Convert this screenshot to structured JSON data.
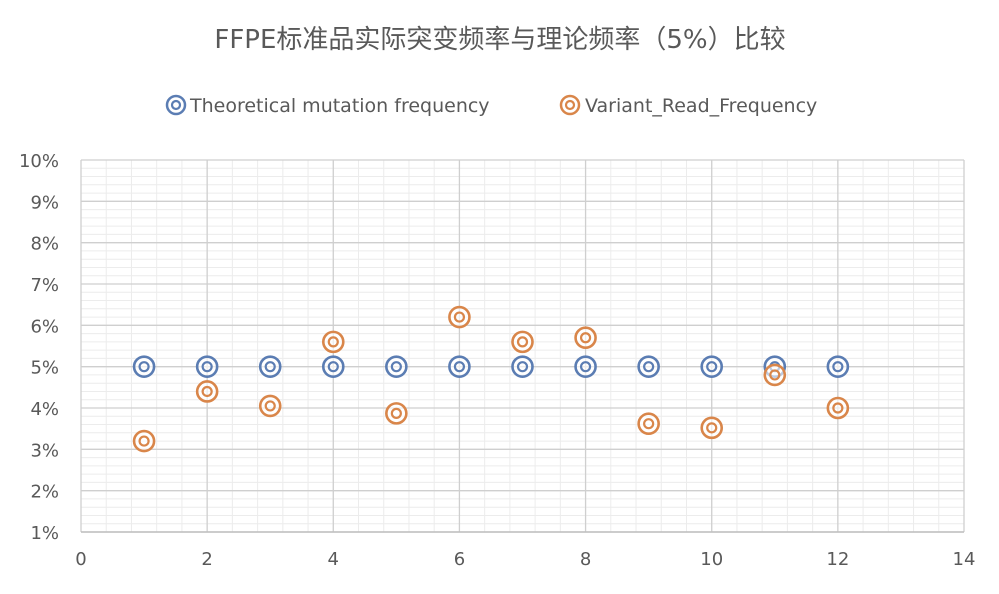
{
  "chart_data": {
    "type": "scatter",
    "title": "FFPE标准品实际突变频率与理论频率（5%）比较",
    "xlabel": "",
    "ylabel": "",
    "xlim": [
      0,
      14
    ],
    "ylim": [
      0.01,
      0.1
    ],
    "x_ticks": [
      0,
      2,
      4,
      6,
      8,
      10,
      12,
      14
    ],
    "y_ticks": [
      0.01,
      0.02,
      0.03,
      0.04,
      0.05,
      0.06,
      0.07,
      0.08,
      0.09,
      0.1
    ],
    "y_tick_labels": [
      "1%",
      "2%",
      "3%",
      "4%",
      "5%",
      "6%",
      "7%",
      "8%",
      "9%",
      "10%"
    ],
    "x_tick_labels": [
      "0",
      "2",
      "4",
      "6",
      "8",
      "10",
      "12",
      "14"
    ],
    "grid": true,
    "legend_position": "top",
    "series": [
      {
        "name": "Theoretical mutation frequency",
        "color": "#5B7DB3",
        "x": [
          1,
          2,
          3,
          4,
          5,
          6,
          7,
          8,
          9,
          10,
          11,
          12
        ],
        "y": [
          0.05,
          0.05,
          0.05,
          0.05,
          0.05,
          0.05,
          0.05,
          0.05,
          0.05,
          0.05,
          0.05,
          0.05
        ]
      },
      {
        "name": "Variant_Read_Frequency",
        "color": "#D9864A",
        "x": [
          1,
          2,
          3,
          4,
          5,
          6,
          7,
          8,
          9,
          10,
          11,
          12
        ],
        "y": [
          0.032,
          0.044,
          0.0405,
          0.056,
          0.0387,
          0.062,
          0.056,
          0.057,
          0.0362,
          0.0352,
          0.048,
          0.04
        ]
      }
    ]
  }
}
